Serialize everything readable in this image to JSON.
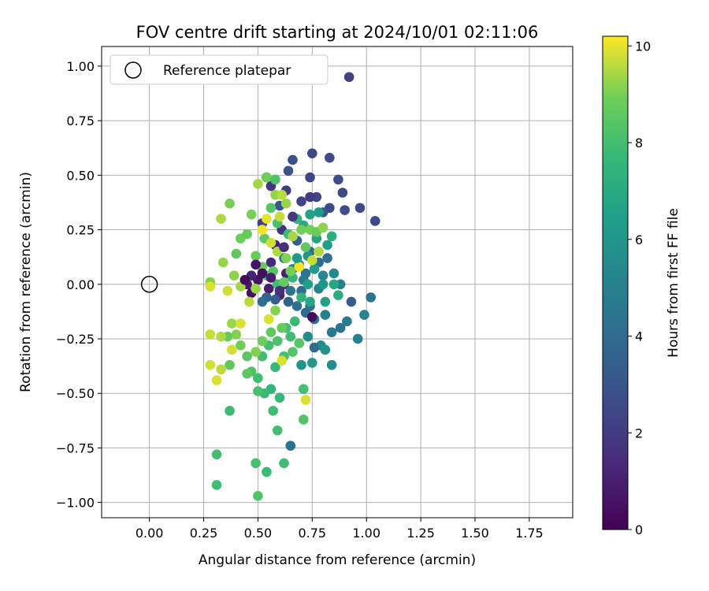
{
  "chart_data": {
    "type": "scatter",
    "title": "FOV centre drift starting at 2024/10/01 02:11:06",
    "xlabel": "Angular distance from reference (arcmin)",
    "ylabel": "Rotation from reference (arcmin)",
    "xlim": [
      -0.22,
      1.95
    ],
    "ylim": [
      -1.07,
      1.09
    ],
    "xticks": [
      0.0,
      0.25,
      0.5,
      0.75,
      1.0,
      1.25,
      1.5,
      1.75
    ],
    "xtick_labels": [
      "0.00",
      "0.25",
      "0.50",
      "0.75",
      "1.00",
      "1.25",
      "1.50",
      "1.75"
    ],
    "yticks": [
      1.0,
      0.75,
      0.5,
      0.25,
      0.0,
      -0.25,
      -0.5,
      -0.75,
      -1.0
    ],
    "ytick_labels": [
      "1.00",
      "0.75",
      "0.50",
      "0.25",
      "0.00",
      "−0.25",
      "−0.50",
      "−0.75",
      "−1.00"
    ],
    "grid": true,
    "legend": {
      "placement": "upper-left",
      "entries": [
        "Reference platepar"
      ]
    },
    "reference_point": {
      "x": 0.0,
      "y": 0.0,
      "label": "Reference platepar"
    },
    "colorbar": {
      "label": "Hours from first FF file",
      "range": [
        0,
        10.2
      ],
      "ticks": [
        0,
        2,
        4,
        6,
        8,
        10
      ],
      "tick_labels": [
        "0",
        "2",
        "4",
        "6",
        "8",
        "10"
      ],
      "colormap": "viridis"
    },
    "series": [
      {
        "color_by": "hours",
        "points": [
          [
            0.92,
            0.95,
            2.3
          ],
          [
            0.75,
            0.6,
            2.5
          ],
          [
            0.83,
            0.58,
            2.6
          ],
          [
            0.66,
            0.57,
            2.8
          ],
          [
            0.64,
            0.52,
            3.0
          ],
          [
            0.87,
            0.48,
            2.7
          ],
          [
            0.74,
            0.49,
            2.4
          ],
          [
            0.89,
            0.42,
            2.5
          ],
          [
            0.54,
            0.49,
            1.3
          ],
          [
            0.56,
            0.45,
            1.8
          ],
          [
            0.63,
            0.43,
            2.0
          ],
          [
            0.7,
            0.38,
            2.3
          ],
          [
            0.77,
            0.4,
            2.4
          ],
          [
            0.83,
            0.35,
            2.6
          ],
          [
            0.9,
            0.34,
            2.7
          ],
          [
            0.97,
            0.35,
            2.5
          ],
          [
            1.04,
            0.29,
            2.6
          ],
          [
            0.8,
            0.33,
            3.0
          ],
          [
            0.52,
            0.28,
            2.2
          ],
          [
            0.6,
            0.36,
            3.1
          ],
          [
            0.58,
            0.18,
            1.0
          ],
          [
            0.61,
            0.25,
            1.6
          ],
          [
            0.68,
            0.2,
            3.4
          ],
          [
            0.74,
            0.15,
            3.8
          ],
          [
            0.78,
            0.1,
            4.0
          ],
          [
            0.82,
            0.12,
            4.2
          ],
          [
            0.72,
            0.05,
            4.5
          ],
          [
            0.66,
            0.07,
            4.8
          ],
          [
            0.62,
            0.12,
            5.0
          ],
          [
            0.56,
            0.1,
            1.4
          ],
          [
            0.5,
            0.02,
            0.6
          ],
          [
            0.45,
            0.0,
            0.8
          ],
          [
            0.47,
            -0.04,
            0.5
          ],
          [
            0.55,
            -0.02,
            0.9
          ],
          [
            0.6,
            -0.05,
            1.1
          ],
          [
            0.64,
            -0.08,
            3.6
          ],
          [
            0.7,
            -0.03,
            4.1
          ],
          [
            0.74,
            -0.1,
            4.4
          ],
          [
            0.78,
            -0.02,
            5.0
          ],
          [
            0.8,
            0.04,
            5.3
          ],
          [
            0.85,
            0.05,
            5.4
          ],
          [
            0.88,
            0.0,
            5.0
          ],
          [
            0.93,
            -0.08,
            3.3
          ],
          [
            1.02,
            -0.06,
            4.4
          ],
          [
            0.99,
            -0.14,
            5.2
          ],
          [
            0.91,
            -0.17,
            4.8
          ],
          [
            0.88,
            -0.2,
            4.3
          ],
          [
            0.84,
            -0.22,
            4.6
          ],
          [
            0.81,
            -0.14,
            4.9
          ],
          [
            0.76,
            -0.16,
            4.6
          ],
          [
            0.72,
            -0.13,
            3.9
          ],
          [
            0.68,
            -0.1,
            4.2
          ],
          [
            0.75,
            -0.15,
            0.4
          ],
          [
            0.79,
            -0.28,
            5.6
          ],
          [
            0.76,
            -0.29,
            4.0
          ],
          [
            0.81,
            -0.3,
            5.8
          ],
          [
            0.73,
            -0.24,
            5.5
          ],
          [
            0.7,
            -0.37,
            5.9
          ],
          [
            0.75,
            -0.36,
            6.1
          ],
          [
            0.84,
            -0.37,
            5.6
          ],
          [
            0.96,
            -0.25,
            5.0
          ],
          [
            0.58,
            -0.07,
            3.4
          ],
          [
            0.54,
            -0.06,
            3.6
          ],
          [
            0.52,
            -0.08,
            4.0
          ],
          [
            0.62,
            0.0,
            1.2
          ],
          [
            0.63,
            0.05,
            1.0
          ],
          [
            0.65,
            -0.03,
            4.4
          ],
          [
            0.71,
            0.02,
            4.7
          ],
          [
            0.69,
            0.09,
            5.6
          ],
          [
            0.73,
            0.13,
            5.9
          ],
          [
            0.76,
            0.07,
            6.2
          ],
          [
            0.8,
            0.0,
            6.0
          ],
          [
            0.82,
            0.18,
            6.4
          ],
          [
            0.77,
            0.21,
            6.7
          ],
          [
            0.71,
            0.27,
            7.0
          ],
          [
            0.74,
            0.32,
            6.6
          ],
          [
            0.78,
            0.33,
            6.3
          ],
          [
            0.84,
            0.22,
            7.2
          ],
          [
            0.68,
            0.3,
            7.5
          ],
          [
            0.64,
            0.23,
            7.8
          ],
          [
            0.59,
            0.28,
            8.1
          ],
          [
            0.56,
            0.35,
            8.4
          ],
          [
            0.53,
            0.21,
            8.6
          ],
          [
            0.49,
            0.13,
            8.8
          ],
          [
            0.54,
            0.04,
            8.3
          ],
          [
            0.59,
            0.0,
            7.9
          ],
          [
            0.66,
            0.03,
            7.6
          ],
          [
            0.7,
            -0.06,
            7.4
          ],
          [
            0.67,
            -0.17,
            7.8
          ],
          [
            0.63,
            -0.2,
            8.0
          ],
          [
            0.59,
            -0.26,
            8.2
          ],
          [
            0.55,
            -0.28,
            8.0
          ],
          [
            0.52,
            -0.33,
            7.9
          ],
          [
            0.58,
            -0.38,
            7.7
          ],
          [
            0.62,
            -0.33,
            8.1
          ],
          [
            0.66,
            -0.31,
            8.3
          ],
          [
            0.56,
            -0.48,
            7.6
          ],
          [
            0.53,
            -0.5,
            7.8
          ],
          [
            0.6,
            -0.52,
            7.7
          ],
          [
            0.5,
            -0.43,
            7.9
          ],
          [
            0.47,
            -0.4,
            8.2
          ],
          [
            0.45,
            -0.33,
            8.5
          ],
          [
            0.42,
            -0.28,
            8.9
          ],
          [
            0.4,
            -0.23,
            9.1
          ],
          [
            0.38,
            -0.18,
            9.3
          ],
          [
            0.36,
            -0.24,
            8.7
          ],
          [
            0.37,
            -0.37,
            8.6
          ],
          [
            0.33,
            -0.39,
            9.6
          ],
          [
            0.31,
            -0.44,
            9.9
          ],
          [
            0.28,
            -0.37,
            9.8
          ],
          [
            0.33,
            -0.24,
            9.5
          ],
          [
            0.28,
            -0.23,
            9.7
          ],
          [
            0.38,
            -0.3,
            9.8
          ],
          [
            0.42,
            -0.18,
            9.9
          ],
          [
            0.46,
            -0.08,
            9.6
          ],
          [
            0.42,
            -0.01,
            9.4
          ],
          [
            0.39,
            0.04,
            9.2
          ],
          [
            0.36,
            -0.03,
            9.8
          ],
          [
            0.34,
            0.1,
            9.3
          ],
          [
            0.28,
            0.01,
            9.1
          ],
          [
            0.28,
            -0.01,
            9.9
          ],
          [
            0.33,
            0.3,
            9.5
          ],
          [
            0.37,
            0.37,
            9.0
          ],
          [
            0.4,
            0.14,
            8.6
          ],
          [
            0.42,
            0.21,
            8.9
          ],
          [
            0.45,
            0.23,
            8.7
          ],
          [
            0.47,
            0.32,
            9.0
          ],
          [
            0.5,
            0.46,
            9.4
          ],
          [
            0.54,
            0.49,
            8.9
          ],
          [
            0.58,
            0.48,
            8.2
          ],
          [
            0.58,
            0.41,
            9.2
          ],
          [
            0.61,
            0.41,
            9.6
          ],
          [
            0.63,
            0.37,
            9.3
          ],
          [
            0.6,
            0.31,
            9.7
          ],
          [
            0.54,
            0.3,
            10.0
          ],
          [
            0.52,
            0.25,
            10.1
          ],
          [
            0.56,
            0.19,
            9.8
          ],
          [
            0.59,
            0.15,
            9.5
          ],
          [
            0.63,
            0.12,
            9.1
          ],
          [
            0.66,
            0.22,
            9.4
          ],
          [
            0.7,
            0.25,
            8.9
          ],
          [
            0.72,
            0.17,
            8.6
          ],
          [
            0.74,
            0.25,
            9.0
          ],
          [
            0.77,
            0.24,
            8.8
          ],
          [
            0.8,
            0.26,
            9.2
          ],
          [
            0.78,
            0.15,
            9.5
          ],
          [
            0.75,
            0.11,
            9.7
          ],
          [
            0.69,
            0.08,
            10.1
          ],
          [
            0.65,
            0.06,
            9.0
          ],
          [
            0.62,
            0.01,
            8.7
          ],
          [
            0.57,
            0.06,
            8.4
          ],
          [
            0.52,
            0.08,
            8.8
          ],
          [
            0.49,
            -0.02,
            9.3
          ],
          [
            0.55,
            -0.16,
            9.9
          ],
          [
            0.58,
            -0.12,
            9.1
          ],
          [
            0.61,
            -0.35,
            9.9
          ],
          [
            0.56,
            -0.22,
            8.6
          ],
          [
            0.52,
            -0.26,
            8.9
          ],
          [
            0.49,
            -0.31,
            9.1
          ],
          [
            0.45,
            -0.41,
            8.6
          ],
          [
            0.5,
            -0.49,
            8.1
          ],
          [
            0.57,
            -0.58,
            7.9
          ],
          [
            0.59,
            -0.67,
            8.0
          ],
          [
            0.49,
            -0.82,
            8.1
          ],
          [
            0.54,
            -0.86,
            7.8
          ],
          [
            0.62,
            -0.82,
            7.9
          ],
          [
            0.5,
            -0.97,
            8.3
          ],
          [
            0.31,
            -0.78,
            8.0
          ],
          [
            0.31,
            -0.92,
            7.9
          ],
          [
            0.37,
            -0.58,
            7.8
          ],
          [
            0.71,
            -0.48,
            8.0
          ],
          [
            0.71,
            -0.62,
            8.3
          ],
          [
            0.72,
            -0.53,
            9.9
          ],
          [
            0.65,
            -0.74,
            4.4
          ],
          [
            0.69,
            -0.27,
            8.4
          ],
          [
            0.65,
            -0.24,
            7.9
          ],
          [
            0.61,
            -0.2,
            8.7
          ],
          [
            0.6,
            -0.03,
            1.6
          ],
          [
            0.56,
            0.03,
            0.9
          ],
          [
            0.52,
            0.05,
            0.4
          ],
          [
            0.49,
            0.09,
            0.7
          ],
          [
            0.47,
            0.04,
            1.1
          ],
          [
            0.44,
            0.02,
            0.3
          ],
          [
            0.62,
            0.17,
            1.5
          ],
          [
            0.66,
            0.31,
            1.8
          ],
          [
            0.74,
            0.4,
            2.0
          ],
          [
            0.73,
            0.0,
            6.5
          ],
          [
            0.74,
            -0.08,
            6.8
          ],
          [
            0.68,
            0.12,
            6.3
          ],
          [
            0.85,
            0.0,
            6.9
          ],
          [
            0.87,
            -0.05,
            7.1
          ],
          [
            0.81,
            -0.08,
            6.6
          ]
        ]
      }
    ]
  }
}
